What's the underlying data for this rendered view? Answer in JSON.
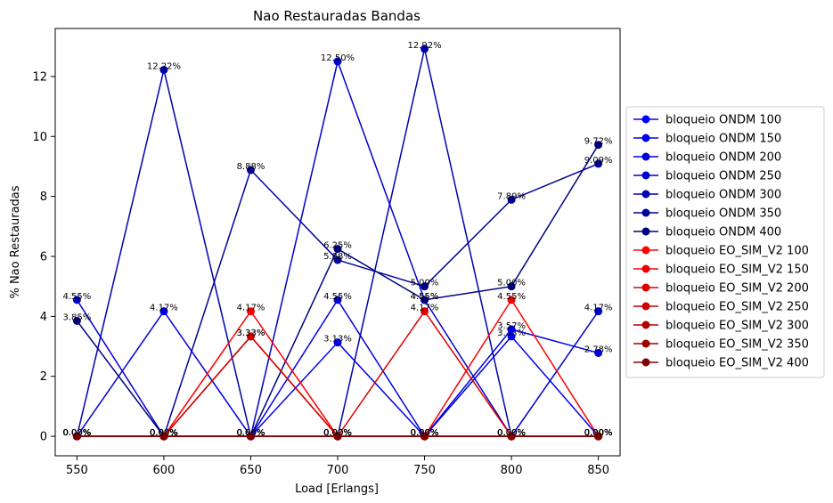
{
  "chart_data": {
    "type": "line",
    "title": "Nao Restauradas Bandas",
    "xlabel": "Load [Erlangs]",
    "ylabel": "% Nao Restauradas",
    "x": [
      550,
      600,
      650,
      700,
      750,
      800,
      850
    ],
    "x_ticks": [
      "550",
      "600",
      "650",
      "700",
      "750",
      "800",
      "850"
    ],
    "y_ticks": [
      "0",
      "2",
      "4",
      "6",
      "8",
      "10",
      "12"
    ],
    "xlim": [
      537.5,
      862.5
    ],
    "ylim": [
      -0.65,
      13.6
    ],
    "legend_position": "outside-right",
    "grid": false,
    "series": [
      {
        "name": "bloqueio ONDM 100",
        "color": "#0000ff",
        "values": [
          0,
          0,
          0,
          0,
          0,
          0,
          0
        ],
        "labels": [
          "0.00%",
          "0.00%",
          "0.00%",
          "0.00%",
          "0.00%",
          "0.00%",
          "0.00%"
        ]
      },
      {
        "name": "bloqueio ONDM 150",
        "color": "#0000ee",
        "values": [
          0,
          0,
          0,
          3.13,
          0,
          3.33,
          0
        ],
        "labels": [
          "0.00%",
          "0.00%",
          "0.00%",
          "3.13%",
          "0.00%",
          "3.33%",
          "0.00%"
        ]
      },
      {
        "name": "bloqueio ONDM 200",
        "color": "#0000dd",
        "values": [
          0,
          4.17,
          0,
          4.55,
          0,
          3.57,
          2.78
        ],
        "labels": [
          "0.00%",
          "4.17%",
          "0.00%",
          "4.55%",
          "0.00%",
          "3.57%",
          "2.78%"
        ]
      },
      {
        "name": "bloqueio ONDM 250",
        "color": "#0000cc",
        "values": [
          4.55,
          0,
          0,
          12.5,
          4.55,
          0,
          4.17
        ],
        "labels": [
          "4.55%",
          "0.00%",
          "0.00%",
          "12.50%",
          "4.55%",
          "0.00%",
          "4.17%"
        ]
      },
      {
        "name": "bloqueio ONDM 300",
        "color": "#0000b3",
        "values": [
          0,
          12.22,
          0,
          0,
          12.92,
          0,
          0
        ],
        "labels": [
          "0.00%",
          "12.22%",
          "0.00%",
          "0.00%",
          "12.92%",
          "0.00%",
          "0.00%"
        ]
      },
      {
        "name": "bloqueio ONDM 350",
        "color": "#00009a",
        "values": [
          0,
          0,
          8.88,
          5.88,
          5.0,
          7.89,
          9.09
        ],
        "labels": [
          "0.00%",
          "0.00%",
          "8.88%",
          "5.88%",
          "5.00%",
          "7.89%",
          "9.09%"
        ]
      },
      {
        "name": "bloqueio ONDM 400",
        "color": "#000080",
        "values": [
          3.85,
          0,
          0,
          6.25,
          4.55,
          5.0,
          9.72
        ],
        "labels": [
          "3.85%",
          "0.00%",
          "0.00%",
          "6.25%",
          "4.55%",
          "5.00%",
          "9.72%"
        ]
      },
      {
        "name": "bloqueio EO_SIM_V2 100",
        "color": "#ff0000",
        "values": [
          0,
          0,
          4.17,
          0,
          0,
          4.55,
          0
        ],
        "labels": [
          "0.00%",
          "0.00%",
          "4.17%",
          "0.00%",
          "0.00%",
          "4.55%",
          "0.00%"
        ]
      },
      {
        "name": "bloqueio EO_SIM_V2 150",
        "color": "#ee0000",
        "values": [
          0,
          0,
          3.33,
          0,
          0,
          0,
          0
        ],
        "labels": [
          "0.00%",
          "0.00%",
          "3.33%",
          "0.00%",
          "0.00%",
          "0.00%",
          "0.00%"
        ]
      },
      {
        "name": "bloqueio EO_SIM_V2 200",
        "color": "#dd0000",
        "values": [
          0,
          0,
          0,
          0,
          4.17,
          0,
          0
        ],
        "labels": [
          "0.00%",
          "0.00%",
          "0.00%",
          "0.00%",
          "4.17%",
          "0.00%",
          "0.00%"
        ]
      },
      {
        "name": "bloqueio EO_SIM_V2 250",
        "color": "#cc0000",
        "values": [
          0,
          0,
          3.33,
          0,
          0,
          0,
          0
        ],
        "labels": [
          "0.00%",
          "0.00%",
          "3.33%",
          "0.00%",
          "0.00%",
          "0.00%",
          "0.00%"
        ]
      },
      {
        "name": "bloqueio EO_SIM_V2 300",
        "color": "#b30000",
        "values": [
          0,
          0,
          0,
          0,
          0,
          0,
          0
        ],
        "labels": [
          "0.00%",
          "0.00%",
          "0.00%",
          "0.00%",
          "0.00%",
          "0.00%",
          "0.00%"
        ]
      },
      {
        "name": "bloqueio EO_SIM_V2 350",
        "color": "#9a0000",
        "values": [
          0,
          0,
          0,
          0,
          0,
          0,
          0
        ],
        "labels": [
          "0.00%",
          "0.00%",
          "0.00%",
          "0.00%",
          "0.00%",
          "0.00%",
          "0.00%"
        ]
      },
      {
        "name": "bloqueio EO_SIM_V2 400",
        "color": "#800000",
        "values": [
          0,
          0,
          0,
          0,
          0,
          0,
          0
        ],
        "labels": [
          "0.00%",
          "0.00%",
          "0.00%",
          "0.00%",
          "0.00%",
          "0.00%",
          "0.00%"
        ]
      }
    ]
  }
}
